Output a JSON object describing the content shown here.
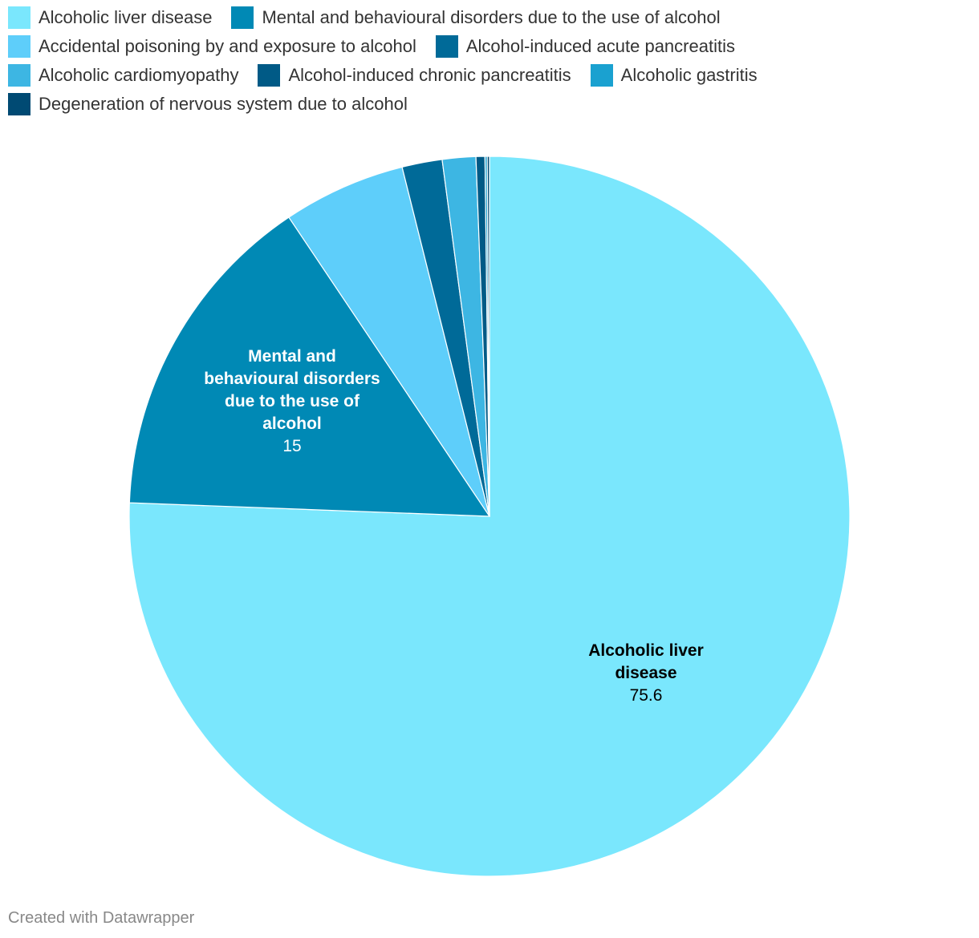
{
  "chart_data": {
    "type": "pie",
    "categories": [
      "Alcoholic liver disease",
      "Mental and behavioural disorders due to the use of alcohol",
      "Accidental poisoning by and exposure to alcohol",
      "Alcohol-induced acute pancreatitis",
      "Alcoholic cardiomyopathy",
      "Alcohol-induced chronic pancreatitis",
      "Alcoholic gastritis",
      "Degeneration of nervous system due to alcohol"
    ],
    "values": [
      75.6,
      15,
      5.5,
      1.8,
      1.5,
      0.4,
      0.1,
      0.1
    ],
    "colors": [
      "#7ae7fd",
      "#0089b5",
      "#5ecefa",
      "#006a98",
      "#3db6e3",
      "#005a86",
      "#1aa1d0",
      "#004a73"
    ],
    "legend": "top",
    "data_labels": [
      {
        "name_lines": [
          "Alcoholic liver",
          "disease"
        ],
        "value": "75.6",
        "text_color": "#000000"
      },
      {
        "name_lines": [
          "Mental and",
          "behavioural disorders",
          "due to the use of",
          "alcohol"
        ],
        "value": "15",
        "text_color": "#ffffff"
      }
    ]
  },
  "footer": {
    "credit": "Created with Datawrapper"
  }
}
